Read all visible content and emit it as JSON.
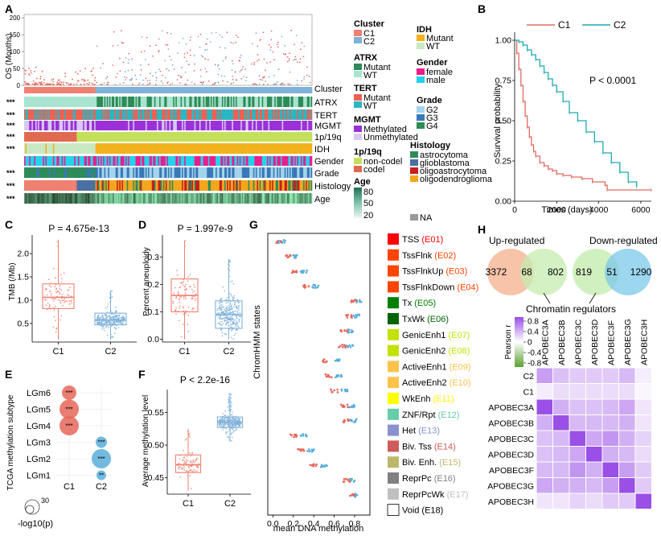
{
  "panels": {
    "a": "A",
    "b": "B",
    "c": "C",
    "d": "D",
    "e": "E",
    "f": "F",
    "g": "G",
    "h": "H"
  },
  "heatmap": {
    "os_label": "OS (Months)",
    "os_ticks": [
      "0",
      "50",
      "100",
      "150",
      "200"
    ],
    "rows": [
      "Cluster",
      "ATRX",
      "TERT",
      "MGMT",
      "1p/19q",
      "IDH",
      "Gender",
      "Grade",
      "Histology",
      "Age"
    ],
    "stars": [
      "",
      "***",
      "***",
      "***",
      "***",
      "***",
      "",
      "***",
      "***",
      "***"
    ]
  },
  "legend": {
    "cluster": {
      "title": "Cluster",
      "items": [
        "C1",
        "C2"
      ]
    },
    "atrx": {
      "title": "ATRX",
      "items": [
        "Mutant",
        "WT"
      ]
    },
    "tert": {
      "title": "TERT",
      "items": [
        "Mutant",
        "WT"
      ]
    },
    "mgmt": {
      "title": "MGMT",
      "items": [
        "Methylated",
        "Unmethylated"
      ]
    },
    "codel": {
      "title": "1p/19q",
      "items": [
        "non-codel",
        "codel"
      ]
    },
    "age": {
      "title": "Age",
      "items": [
        "80",
        "50",
        "20"
      ]
    },
    "idh": {
      "title": "IDH",
      "items": [
        "Mutant",
        "WT"
      ]
    },
    "gender": {
      "title": "Gender",
      "items": [
        "female",
        "male"
      ]
    },
    "grade": {
      "title": "Grade",
      "items": [
        "G2",
        "G3",
        "G4"
      ]
    },
    "histology": {
      "title": "Histology",
      "items": [
        "astrocytoma",
        "glioblastoma",
        "oligoastrocytoma",
        "oligodendroglioma"
      ]
    },
    "na": "NA"
  },
  "colors": {
    "c1": "#f08070",
    "c2": "#7fb2d9",
    "km_c1": "#e06a60",
    "km_c2": "#1fa9b0"
  },
  "chart_data": [
    {
      "id": "km",
      "type": "line",
      "legend": [
        "C1",
        "C2"
      ],
      "xlabel": "Times (days)",
      "ylabel": "Survival probability",
      "pvalue": "P < 0.0001",
      "xticks": [
        "0",
        "2000",
        "4000",
        "6000"
      ],
      "yticks": [
        "0.00",
        "0.25",
        "0.50",
        "0.75",
        "1.00"
      ],
      "xlim": [
        0,
        6500
      ],
      "ylim": [
        0,
        1.05
      ],
      "series": [
        {
          "name": "C1",
          "x": [
            0,
            100,
            200,
            300,
            400,
            500,
            600,
            700,
            800,
            900,
            1000,
            1200,
            1400,
            1600,
            1800,
            2000,
            2300,
            2700,
            3200,
            3700,
            4300,
            4400,
            6500
          ],
          "y": [
            1.0,
            0.92,
            0.82,
            0.72,
            0.62,
            0.53,
            0.46,
            0.4,
            0.35,
            0.31,
            0.28,
            0.24,
            0.22,
            0.2,
            0.19,
            0.17,
            0.16,
            0.15,
            0.14,
            0.12,
            0.1,
            0.07,
            0.07
          ]
        },
        {
          "name": "C2",
          "x": [
            0,
            200,
            400,
            600,
            800,
            1000,
            1200,
            1400,
            1600,
            1800,
            2000,
            2300,
            2600,
            3000,
            3400,
            3800,
            4200,
            4600,
            5000,
            5400,
            5800
          ],
          "y": [
            1.0,
            0.99,
            0.97,
            0.94,
            0.91,
            0.88,
            0.84,
            0.8,
            0.76,
            0.72,
            0.68,
            0.62,
            0.55,
            0.5,
            0.43,
            0.37,
            0.3,
            0.24,
            0.18,
            0.12,
            0.09
          ]
        }
      ]
    },
    {
      "id": "tmb",
      "type": "box",
      "title": "P = 4.675e-13",
      "categories": [
        "C1",
        "C2"
      ],
      "ylabel": "TMB (/Mb)",
      "yticks": [
        "0.5",
        "1.0",
        "1.5",
        "2.0"
      ],
      "ylim": [
        0.1,
        2.4
      ],
      "boxes": [
        {
          "name": "C1",
          "min": 0.15,
          "q1": 0.82,
          "median": 1.06,
          "q3": 1.35,
          "max": 2.3
        },
        {
          "name": "C2",
          "min": 0.15,
          "q1": 0.47,
          "median": 0.57,
          "q3": 0.72,
          "max": 1.2
        }
      ]
    },
    {
      "id": "aneuploidy",
      "type": "box",
      "title": "P = 1.997e-9",
      "categories": [
        "C1",
        "C2"
      ],
      "ylabel": "Percent aneuploidy",
      "yticks": [
        "0.0",
        "0.1",
        "0.2",
        "0.3"
      ],
      "ylim": [
        -0.01,
        0.38
      ],
      "boxes": [
        {
          "name": "C1",
          "min": 0.0,
          "q1": 0.1,
          "median": 0.16,
          "q3": 0.22,
          "max": 0.36
        },
        {
          "name": "C2",
          "min": 0.0,
          "q1": 0.04,
          "median": 0.09,
          "q3": 0.14,
          "max": 0.29
        }
      ]
    },
    {
      "id": "methylation",
      "type": "box",
      "title": "P < 2.2e-16",
      "categories": [
        "C1",
        "C2"
      ],
      "ylabel": "Average methylation level",
      "yticks": [
        "0.45",
        "0.50",
        "0.55"
      ],
      "ylim": [
        0.425,
        0.585
      ],
      "boxes": [
        {
          "name": "C1",
          "min": 0.43,
          "q1": 0.458,
          "median": 0.47,
          "q3": 0.485,
          "max": 0.525
        },
        {
          "name": "C2",
          "min": 0.505,
          "q1": 0.527,
          "median": 0.535,
          "q3": 0.543,
          "max": 0.58
        }
      ]
    },
    {
      "id": "lgm",
      "type": "scatter",
      "categories": [
        "C1",
        "C2"
      ],
      "ylabel": "TCGA methylation subtype",
      "rows": [
        "LGm6",
        "LGm5",
        "LGm4",
        "LGm3",
        "LGm2",
        "LGm1"
      ],
      "points": [
        {
          "row": "LGm6",
          "col": "C1",
          "size": 30,
          "label": "***"
        },
        {
          "row": "LGm5",
          "col": "C1",
          "size": 45,
          "label": "***"
        },
        {
          "row": "LGm4",
          "col": "C1",
          "size": 45,
          "label": "***"
        },
        {
          "row": "LGm3",
          "col": "C2",
          "size": 20,
          "label": "***"
        },
        {
          "row": "LGm2",
          "col": "C2",
          "size": 45,
          "label": "***"
        },
        {
          "row": "LGm1",
          "col": "C2",
          "size": 15,
          "label": "**"
        }
      ],
      "size_legend": {
        "value": "30",
        "label": "-log10(p)"
      }
    },
    {
      "id": "chromhmm",
      "type": "scatter",
      "xlabel": "mean DNA methylation",
      "ylabel": "ChromHMM states",
      "xticks": [
        "0.0",
        "0.2",
        "0.4",
        "0.6",
        "0.8"
      ],
      "xlim": [
        -0.05,
        0.95
      ],
      "states": [
        {
          "name": "TSS",
          "code": "(E01)",
          "color": "#ff0000",
          "c1": 0.07,
          "c2": 0.09
        },
        {
          "name": "TssFlnk",
          "code": "(E02)",
          "color": "#ff4500",
          "c1": 0.15,
          "c2": 0.22
        },
        {
          "name": "TssFlnkUp",
          "code": "(E03)",
          "color": "#ff4500",
          "c1": 0.2,
          "c2": 0.3
        },
        {
          "name": "TssFlnkDown",
          "code": "(E04)",
          "color": "#ff4500",
          "c1": 0.33,
          "c2": 0.42
        },
        {
          "name": "Tx",
          "code": "(E05)",
          "color": "#008000",
          "c1": 0.79,
          "c2": 0.84
        },
        {
          "name": "TxWk",
          "code": "(E06)",
          "color": "#006400",
          "c1": 0.74,
          "c2": 0.82
        },
        {
          "name": "GenicEnh1",
          "code": "(E07)",
          "color": "#c2e105",
          "c1": 0.7,
          "c2": 0.76
        },
        {
          "name": "GenicEnh2",
          "code": "(E08)",
          "color": "#c2e105",
          "c1": 0.68,
          "c2": 0.75
        },
        {
          "name": "ActiveEnh1",
          "code": "(E09)",
          "color": "#ffc34d",
          "c1": 0.52,
          "c2": 0.62
        },
        {
          "name": "ActiveEnh2",
          "code": "(E10)",
          "color": "#ffc34d",
          "c1": 0.54,
          "c2": 0.64
        },
        {
          "name": "WkEnh",
          "code": "(E11)",
          "color": "#ffff00",
          "c1": 0.6,
          "c2": 0.7
        },
        {
          "name": "ZNF/Rpt",
          "code": "(E12)",
          "color": "#66cdaa",
          "c1": 0.7,
          "c2": 0.78
        },
        {
          "name": "Het",
          "code": "(E13)",
          "color": "#8a91d0",
          "c1": 0.72,
          "c2": 0.79
        },
        {
          "name": "Biv. Tss",
          "code": "(E14)",
          "color": "#cd5c5c",
          "c1": 0.2,
          "c2": 0.3
        },
        {
          "name": "Biv. Enh.",
          "code": "(E15)",
          "color": "#bdb76b",
          "c1": 0.27,
          "c2": 0.37
        },
        {
          "name": "ReprPc",
          "code": "(E16)",
          "color": "#808080",
          "c1": 0.4,
          "c2": 0.5
        },
        {
          "name": "ReprPcWk",
          "code": "(E17)",
          "color": "#c0c0c0",
          "c1": 0.72,
          "c2": 0.78
        },
        {
          "name": "Void",
          "code": "(E18)",
          "color": "#ffffff",
          "c1": 0.78,
          "c2": 0.83
        }
      ]
    },
    {
      "id": "apobec",
      "type": "heatmap",
      "columns": [
        "APOBEC3A",
        "APOBEC3B",
        "APOBEC3C",
        "APOBEC3D",
        "APOBEC3F",
        "APOBEC3G",
        "APOBEC3H"
      ],
      "rows": [
        "C2",
        "C1",
        "APOBEC3A",
        "APOBEC3B",
        "APOBEC3C",
        "APOBEC3D",
        "APOBEC3F",
        "APOBEC3G",
        "APOBEC3H"
      ],
      "colorbar": {
        "label": "Pearson r",
        "ticks": [
          "0.8",
          "0.4",
          "0",
          "-0.4",
          "-0.8"
        ]
      },
      "values": [
        [
          0.55,
          0.35,
          0.3,
          0.3,
          0.3,
          0.4,
          0.1
        ],
        [
          0.1,
          0.2,
          0.2,
          0.2,
          0.2,
          0.2,
          0.05
        ],
        [
          1,
          0.45,
          0.35,
          0.35,
          0.4,
          0.5,
          0.15
        ],
        [
          0.45,
          1,
          0.4,
          0.4,
          0.4,
          0.45,
          0.15
        ],
        [
          0.35,
          0.4,
          1,
          0.5,
          0.6,
          0.45,
          0.25
        ],
        [
          0.35,
          0.4,
          0.5,
          1,
          0.45,
          0.4,
          0.2
        ],
        [
          0.4,
          0.4,
          0.6,
          0.45,
          1,
          0.55,
          0.3
        ],
        [
          0.5,
          0.45,
          0.45,
          0.4,
          0.55,
          1,
          0.3
        ],
        [
          0.15,
          0.15,
          0.25,
          0.2,
          0.3,
          0.3,
          1
        ]
      ]
    }
  ],
  "venn": {
    "up_label": "Up-regulated",
    "down_label": "Down-regulated",
    "center_label": "Chromatin regulators",
    "up_left": "3372",
    "up_mid": "68",
    "up_right": "802",
    "down_left": "819",
    "down_mid": "51",
    "down_right": "1290"
  }
}
